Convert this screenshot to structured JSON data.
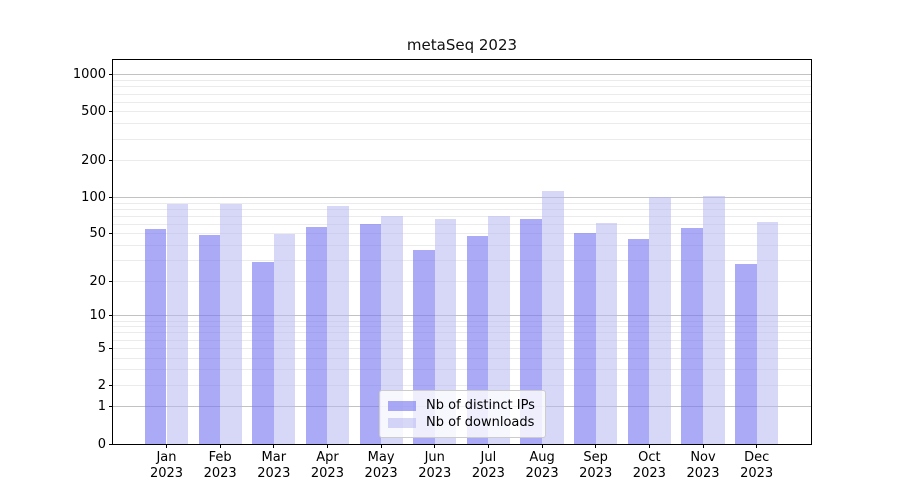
{
  "title": "metaSeq 2023",
  "chart_data": {
    "type": "bar",
    "title": "metaSeq 2023",
    "categories": [
      "Jan",
      "Feb",
      "Mar",
      "Apr",
      "May",
      "Jun",
      "Jul",
      "Aug",
      "Sep",
      "Oct",
      "Nov",
      "Dec"
    ],
    "year_label": "2023",
    "series": [
      {
        "name": "Nb of distinct IPs",
        "color": "rgba(118,118,240,0.62)",
        "values": [
          55,
          49,
          29,
          57,
          61,
          37,
          48,
          66,
          51,
          45,
          56,
          28
        ]
      },
      {
        "name": "Nb of downloads",
        "color": "rgba(183,183,242,0.55)",
        "values": [
          88,
          88,
          50,
          85,
          71,
          67,
          71,
          113,
          62,
          101,
          103,
          63
        ]
      }
    ],
    "xlabel": "",
    "ylabel": "",
    "yscale": "log(value+1)",
    "ylim": [
      0,
      1324
    ],
    "y_ticks": [
      1000,
      500,
      200,
      100,
      50,
      20,
      10,
      5,
      2,
      1,
      0
    ],
    "y_major_gridlines": [
      1,
      10,
      100,
      1000
    ],
    "grid": true,
    "legend_position": "lower center"
  },
  "colors": {
    "grid_major": "#c2c2c2",
    "grid_minor": "#ebebeb",
    "spine": "#000000",
    "title_text": "#111111"
  }
}
